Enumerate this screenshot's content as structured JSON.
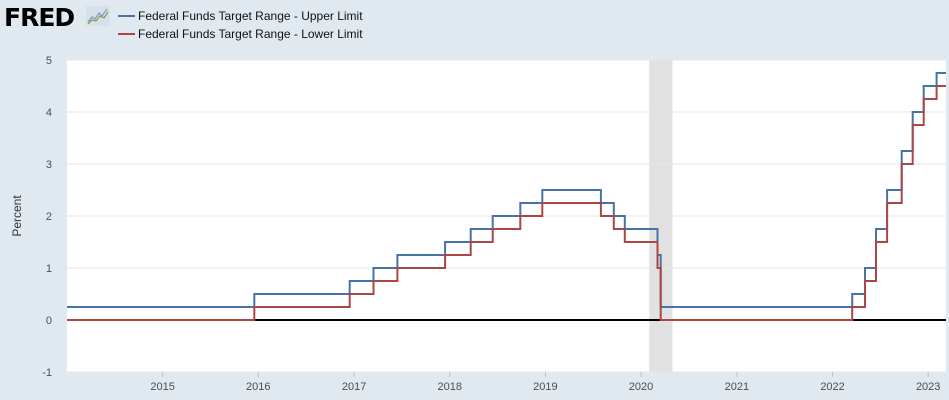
{
  "header": {
    "logo_text": "FRED",
    "logo_icon": "line-chart-icon"
  },
  "colors": {
    "background": "#e1e9f0",
    "plot_background": "#ffffff",
    "upper": "#4572a7",
    "lower": "#aa4643",
    "recession": "#e1e1e1",
    "zero_line": "#000000"
  },
  "chart_data": {
    "type": "line",
    "step": true,
    "ylabel": "Percent",
    "ylim": [
      -1,
      5
    ],
    "yticks": [
      "-1",
      "0",
      "1",
      "2",
      "3",
      "4",
      "5"
    ],
    "xlim": [
      "2014-01-01",
      "2023-03-10"
    ],
    "xticks": [
      "2015",
      "2016",
      "2017",
      "2018",
      "2019",
      "2020",
      "2021",
      "2022",
      "2023"
    ],
    "grid": true,
    "zero_line": true,
    "legend_position": "top-left",
    "recession": {
      "start": "2020-02-01",
      "end": "2020-04-30"
    },
    "series": [
      {
        "name": "Federal Funds Target Range - Upper Limit",
        "color": "#4572a7",
        "points": [
          [
            "2014-01-01",
            0.25
          ],
          [
            "2015-12-17",
            0.5
          ],
          [
            "2016-12-15",
            0.75
          ],
          [
            "2017-03-16",
            1.0
          ],
          [
            "2017-06-15",
            1.25
          ],
          [
            "2017-12-14",
            1.5
          ],
          [
            "2018-03-22",
            1.75
          ],
          [
            "2018-06-14",
            2.0
          ],
          [
            "2018-09-27",
            2.25
          ],
          [
            "2018-12-20",
            2.5
          ],
          [
            "2019-08-01",
            2.25
          ],
          [
            "2019-09-19",
            2.0
          ],
          [
            "2019-10-31",
            1.75
          ],
          [
            "2020-03-04",
            1.25
          ],
          [
            "2020-03-16",
            0.25
          ],
          [
            "2022-03-17",
            0.5
          ],
          [
            "2022-05-05",
            1.0
          ],
          [
            "2022-06-16",
            1.75
          ],
          [
            "2022-07-28",
            2.5
          ],
          [
            "2022-09-22",
            3.25
          ],
          [
            "2022-11-03",
            4.0
          ],
          [
            "2022-12-15",
            4.5
          ],
          [
            "2023-02-02",
            4.75
          ],
          [
            "2023-03-10",
            4.75
          ]
        ]
      },
      {
        "name": "Federal Funds Target Range - Lower Limit",
        "color": "#aa4643",
        "points": [
          [
            "2014-01-01",
            0.0
          ],
          [
            "2015-12-17",
            0.25
          ],
          [
            "2016-12-15",
            0.5
          ],
          [
            "2017-03-16",
            0.75
          ],
          [
            "2017-06-15",
            1.0
          ],
          [
            "2017-12-14",
            1.25
          ],
          [
            "2018-03-22",
            1.5
          ],
          [
            "2018-06-14",
            1.75
          ],
          [
            "2018-09-27",
            2.0
          ],
          [
            "2018-12-20",
            2.25
          ],
          [
            "2019-08-01",
            2.0
          ],
          [
            "2019-09-19",
            1.75
          ],
          [
            "2019-10-31",
            1.5
          ],
          [
            "2020-03-04",
            1.0
          ],
          [
            "2020-03-16",
            0.0
          ],
          [
            "2022-03-17",
            0.25
          ],
          [
            "2022-05-05",
            0.75
          ],
          [
            "2022-06-16",
            1.5
          ],
          [
            "2022-07-28",
            2.25
          ],
          [
            "2022-09-22",
            3.0
          ],
          [
            "2022-11-03",
            3.75
          ],
          [
            "2022-12-15",
            4.25
          ],
          [
            "2023-02-02",
            4.5
          ],
          [
            "2023-03-10",
            4.5
          ]
        ]
      }
    ]
  }
}
